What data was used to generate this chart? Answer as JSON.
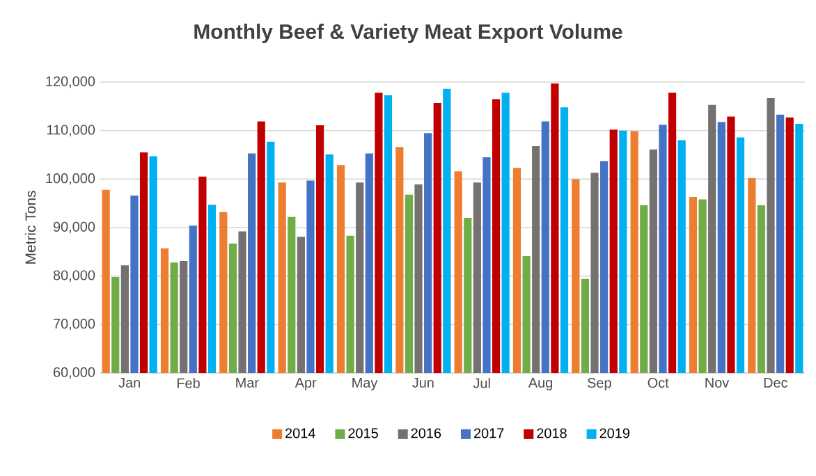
{
  "chart_data": {
    "type": "bar",
    "title": "Monthly Beef & Variety Meat Export Volume",
    "ylabel": "Metric Tons",
    "categories": [
      "Jan",
      "Feb",
      "Mar",
      "Apr",
      "May",
      "Jun",
      "Jul",
      "Aug",
      "Sep",
      "Oct",
      "Nov",
      "Dec"
    ],
    "series": [
      {
        "name": "2014",
        "color": "#ed7d31",
        "values": [
          97800,
          85700,
          93200,
          99300,
          102900,
          106600,
          101600,
          102300,
          100000,
          109900,
          96300,
          100200
        ]
      },
      {
        "name": "2015",
        "color": "#70ad47",
        "values": [
          79800,
          82800,
          86700,
          92200,
          88300,
          96800,
          92000,
          84100,
          79400,
          94600,
          95800,
          94600
        ]
      },
      {
        "name": "2016",
        "color": "#767171",
        "values": [
          82200,
          83100,
          89200,
          88100,
          99300,
          98900,
          99300,
          106800,
          101300,
          106100,
          115300,
          116700
        ]
      },
      {
        "name": "2017",
        "color": "#4472c4",
        "values": [
          96600,
          90400,
          105300,
          99700,
          105300,
          109500,
          104500,
          111900,
          103700,
          111200,
          111800,
          113300
        ]
      },
      {
        "name": "2018",
        "color": "#c00000",
        "values": [
          105500,
          100500,
          111900,
          111100,
          117800,
          115700,
          116500,
          119700,
          110200,
          117800,
          112900,
          112700
        ]
      },
      {
        "name": "2019",
        "color": "#00b0f0",
        "values": [
          104700,
          94700,
          107700,
          105100,
          117300,
          118600,
          117800,
          114800,
          110000,
          108000,
          108600,
          111400
        ]
      }
    ],
    "ylim": [
      60000,
      120000
    ],
    "yticks": [
      {
        "value": 60000,
        "label": "60,000"
      },
      {
        "value": 70000,
        "label": "70,000"
      },
      {
        "value": 80000,
        "label": "80,000"
      },
      {
        "value": 90000,
        "label": "90,000"
      },
      {
        "value": 100000,
        "label": "100,000"
      },
      {
        "value": 110000,
        "label": "110,000"
      },
      {
        "value": 120000,
        "label": "120,000"
      }
    ],
    "grid": "y",
    "legend": "bottom"
  }
}
